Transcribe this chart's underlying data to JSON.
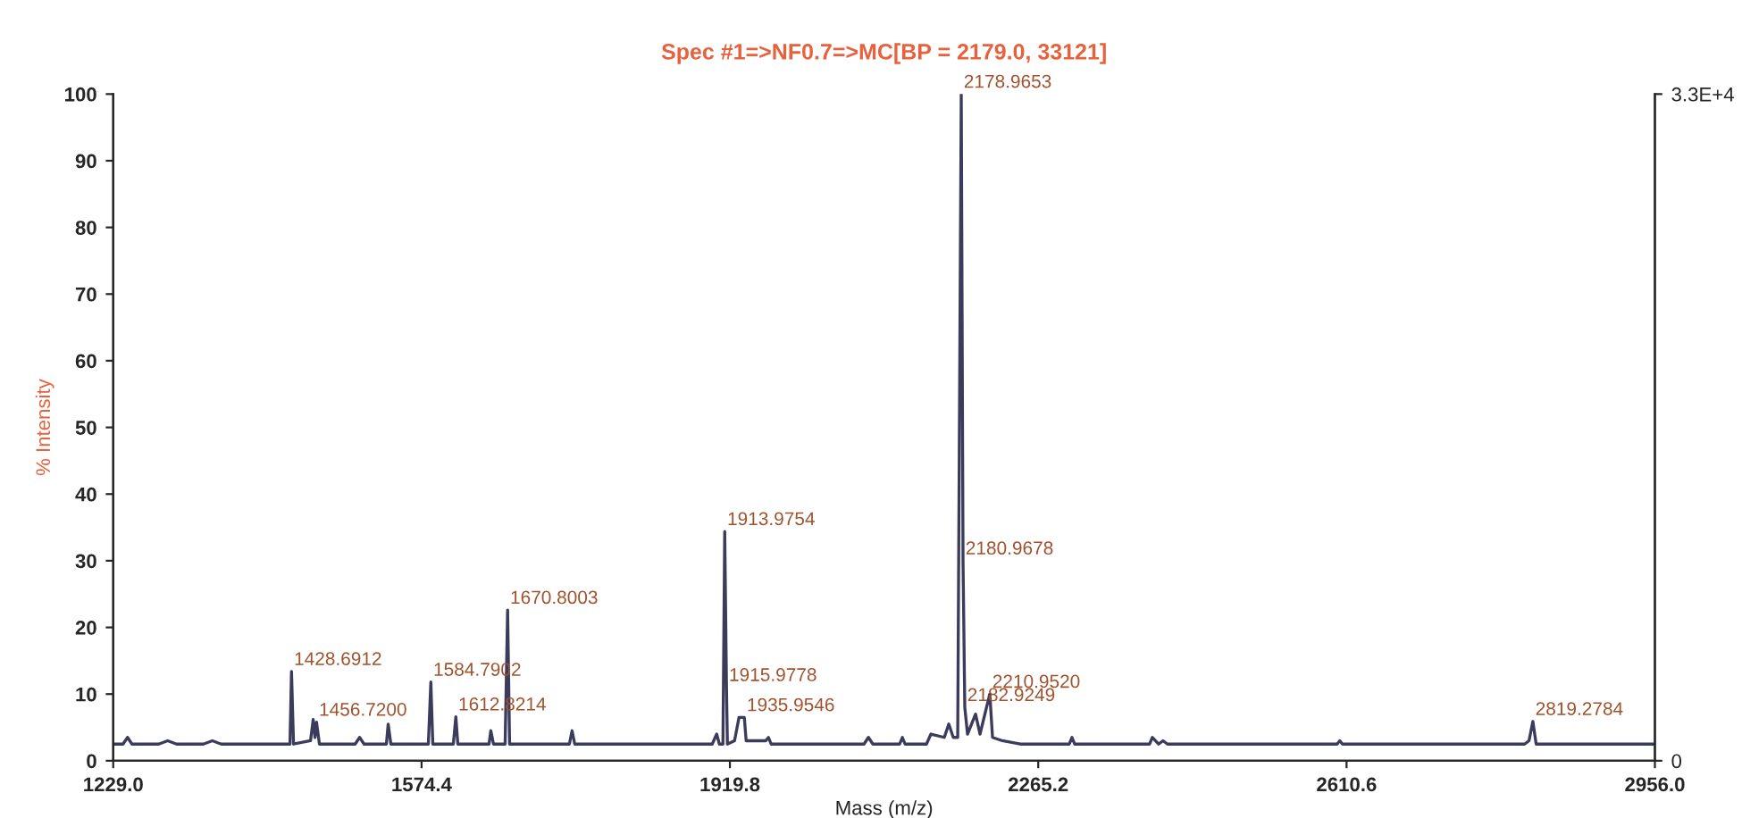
{
  "chart_data": {
    "type": "line",
    "title": "Spec #1=>NF0.7=>MC[BP = 2179.0, 33121]",
    "xlabel": "Mass (m/z)",
    "ylabel": "% Intensity",
    "series": [
      {
        "color": "#3b3b5c",
        "x": [
          1229,
          1240,
          1245,
          1250,
          1280,
          1290,
          1300,
          1330,
          1340,
          1350,
          1420,
          1427,
          1428.7,
          1431,
          1450,
          1453,
          1455,
          1456.7,
          1460,
          1500,
          1505,
          1510,
          1535,
          1537,
          1540,
          1582,
          1584.8,
          1587,
          1610,
          1612.8,
          1615,
          1650,
          1652,
          1655,
          1668,
          1670.8,
          1673,
          1740,
          1743,
          1746,
          1900,
          1905,
          1908,
          1912,
          1914.0,
          1915.98,
          1917,
          1925,
          1930,
          1935.95,
          1938,
          1960,
          1963,
          1966,
          2070,
          2075,
          2080,
          2110,
          2113,
          2116,
          2140,
          2145,
          2160,
          2165,
          2170,
          2175,
          2178.97,
          2180.97,
          2182.92,
          2186,
          2195,
          2200,
          2210.95,
          2214,
          2225,
          2245,
          2300,
          2303,
          2306,
          2390,
          2393,
          2400,
          2405,
          2410,
          2600,
          2603,
          2606,
          2810,
          2815,
          2819.28,
          2823,
          2956
        ],
        "values": [
          2.5,
          2.5,
          3.5,
          2.5,
          2.5,
          3,
          2.5,
          2.5,
          3,
          2.5,
          2.5,
          2.5,
          13.4,
          2.5,
          3,
          6.2,
          3.5,
          5.8,
          2.5,
          2.5,
          3.5,
          2.5,
          2.5,
          5.5,
          2.5,
          2.5,
          11.8,
          2.5,
          2.5,
          6.6,
          2.5,
          2.5,
          4.5,
          2.5,
          2.5,
          22.6,
          2.5,
          2.5,
          4.5,
          2.5,
          2.5,
          4,
          2.5,
          2.5,
          34.4,
          11,
          2.5,
          3,
          6.5,
          6.5,
          3,
          3,
          3.5,
          2.5,
          2.5,
          3.5,
          2.5,
          2.5,
          3.5,
          2.5,
          2.5,
          4,
          3.5,
          5.5,
          3.5,
          3.5,
          100,
          30,
          8,
          4,
          7,
          4,
          10,
          3.5,
          3,
          2.5,
          2.5,
          3.5,
          2.5,
          2.5,
          3.5,
          2.5,
          3,
          2.5,
          2.5,
          3,
          2.5,
          2.5,
          3,
          5.9,
          2.5,
          2.5
        ]
      }
    ],
    "xlim": [
      1229.0,
      2956.0
    ],
    "xticks": [
      {
        "value": 1229,
        "label": "1229.0"
      },
      1574.4,
      1919.8,
      2265.2,
      2610.6,
      {
        "value": 2956,
        "label": "2956.0"
      }
    ],
    "ylim": [
      0,
      100
    ],
    "yticks": [
      0,
      10,
      20,
      30,
      40,
      50,
      60,
      70,
      80,
      90,
      100
    ],
    "y2lim": [
      0,
      33000
    ],
    "y2ticks": [
      0,
      {
        "value": 33000,
        "label": "3.3E+4"
      }
    ],
    "annotations": [
      {
        "text": "1428.6912",
        "x": 1428.7,
        "y": 13.4
      },
      {
        "text": "1456.7200",
        "x": 1456.7,
        "y": 5.8
      },
      {
        "text": "1584.7902",
        "x": 1584.8,
        "y": 11.8
      },
      {
        "text": "1612.8214",
        "x": 1612.8,
        "y": 6.6
      },
      {
        "text": "1670.8003",
        "x": 1670.8,
        "y": 22.6
      },
      {
        "text": "1913.9754",
        "x": 1914.0,
        "y": 34.4
      },
      {
        "text": "1915.9778",
        "x": 1915.98,
        "y": 11
      },
      {
        "text": "1935.9546",
        "x": 1935.95,
        "y": 6.5
      },
      {
        "text": "2178.9653",
        "x": 2178.97,
        "y": 100
      },
      {
        "text": "2180.9678",
        "x": 2180.97,
        "y": 30
      },
      {
        "text": "2182.9249",
        "x": 2182.92,
        "y": 8
      },
      {
        "text": "2210.9520",
        "x": 2210.95,
        "y": 10
      },
      {
        "text": "2819.2784",
        "x": 2819.28,
        "y": 5.9
      }
    ],
    "grid": false,
    "legend": false
  }
}
